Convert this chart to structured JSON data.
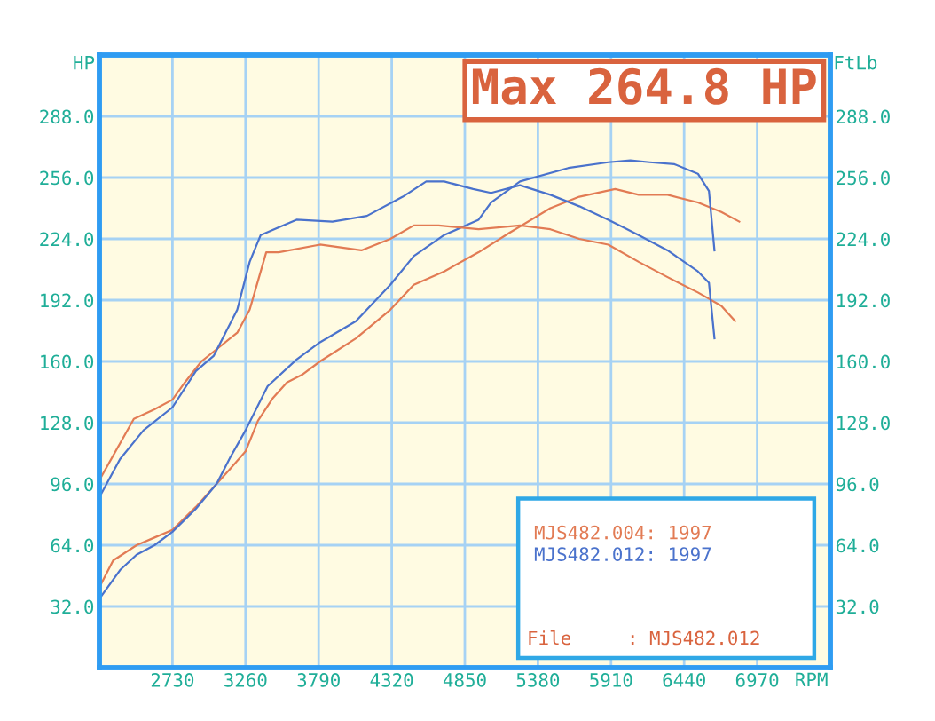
{
  "chart_data": {
    "type": "line",
    "xlabel": "RPM",
    "ylabel": "HP",
    "y2label": "FtLb",
    "annotations": [
      "Max 264.8 HP",
      "File     : MJS482.012"
    ],
    "xlim": [
      2200,
      7500
    ],
    "xticks": [
      2730,
      3260,
      3790,
      4320,
      4850,
      5380,
      5910,
      6440,
      6970
    ],
    "ylim": [
      0,
      320
    ],
    "yticks": [
      {
        "value": 32,
        "label": "32.0"
      },
      {
        "value": 64,
        "label": "64.0"
      },
      {
        "value": 96,
        "label": "96.0"
      },
      {
        "value": 128,
        "label": "128.0"
      },
      {
        "value": 160,
        "label": "160.0"
      },
      {
        "value": 192,
        "label": "192.0"
      },
      {
        "value": 224,
        "label": "224.0"
      },
      {
        "value": 256,
        "label": "256.0"
      },
      {
        "value": 288,
        "label": "288.0"
      }
    ],
    "y2lim": [
      0,
      320
    ],
    "y2ticks": [
      {
        "value": 32,
        "label": "32.0"
      },
      {
        "value": 64,
        "label": "64.0"
      },
      {
        "value": 96,
        "label": "96.0"
      },
      {
        "value": 128,
        "label": "128.0"
      },
      {
        "value": 160,
        "label": "160.0"
      },
      {
        "value": 192,
        "label": "192.0"
      },
      {
        "value": 224,
        "label": "224.0"
      },
      {
        "value": 256,
        "label": "256.0"
      },
      {
        "value": 288,
        "label": "288.0"
      }
    ],
    "grid": true,
    "legend": "bottom right",
    "marker": "none",
    "line_style": "solid",
    "series": [
      {
        "name": "MJS482.004: 1997",
        "color": "#e27b54",
        "x": [
          2200,
          2300,
          2470,
          2600,
          2730,
          2900,
          3050,
          3150,
          3260,
          3350,
          3460,
          3560,
          3670,
          3800,
          4060,
          4310,
          4480,
          4700,
          4950,
          5170,
          5470,
          5680,
          5940,
          6110,
          6320,
          6540,
          6710,
          6840
        ],
        "values": [
          42,
          56,
          64,
          68,
          72,
          84,
          96,
          104,
          113,
          129,
          141,
          149,
          153,
          160,
          172,
          187,
          200,
          207,
          217,
          227,
          240,
          246,
          250,
          247,
          247,
          243,
          238,
          233
        ]
      },
      {
        "name": "MJS482.012: 1997",
        "color": "#4a72cc",
        "x": [
          2200,
          2350,
          2470,
          2600,
          2730,
          2900,
          3050,
          3150,
          3260,
          3420,
          3630,
          3800,
          4060,
          4310,
          4480,
          4700,
          4950,
          5040,
          5250,
          5600,
          5890,
          6050,
          6190,
          6370,
          6540,
          6620,
          6660
        ],
        "values": [
          36,
          51,
          59,
          64,
          71,
          83,
          96,
          110,
          124,
          147,
          161,
          170,
          181,
          200,
          215,
          226,
          234,
          243,
          254,
          261,
          264,
          265,
          264,
          263,
          258,
          249,
          218
        ]
      },
      {
        "color": "#e27b54",
        "axis": "y2",
        "x": [
          2200,
          2450,
          2600,
          2730,
          2820,
          2940,
          3200,
          3290,
          3410,
          3500,
          3800,
          4100,
          4310,
          4480,
          4660,
          4950,
          5250,
          5470,
          5680,
          5890,
          6110,
          6320,
          6540,
          6710,
          6810
        ],
        "values": [
          98,
          130,
          135,
          140,
          149,
          160,
          175,
          187,
          217,
          217,
          221,
          218,
          224,
          231,
          231,
          229,
          231,
          229,
          224,
          221,
          212,
          204,
          196,
          189,
          181
        ]
      },
      {
        "color": "#4a72cc",
        "axis": "y2",
        "x": [
          2200,
          2350,
          2520,
          2730,
          2900,
          3030,
          3200,
          3290,
          3370,
          3630,
          3890,
          4140,
          4400,
          4570,
          4700,
          4910,
          5040,
          5250,
          5470,
          5680,
          5890,
          6110,
          6320,
          6540,
          6620,
          6660
        ],
        "values": [
          89,
          109,
          124,
          136,
          155,
          163,
          187,
          212,
          226,
          234,
          233,
          236,
          246,
          254,
          254,
          250,
          248,
          252,
          247,
          241,
          234,
          226,
          218,
          207,
          201,
          172
        ]
      }
    ]
  }
}
